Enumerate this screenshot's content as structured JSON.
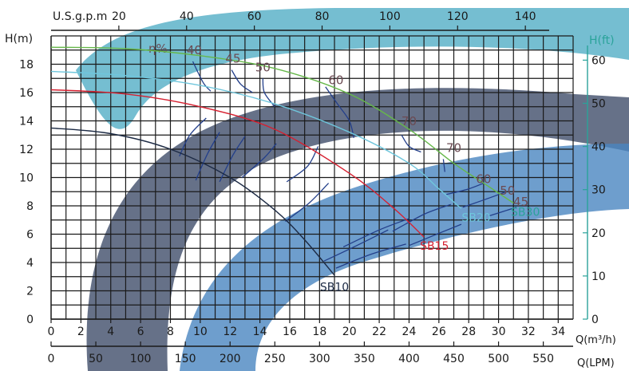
{
  "chart_data": {
    "type": "line",
    "title": "",
    "axes": {
      "bottom_primary": {
        "label": "Q(m³/h)",
        "range": [
          0,
          35
        ],
        "ticks": [
          0,
          2,
          4,
          6,
          8,
          10,
          12,
          14,
          16,
          18,
          20,
          22,
          24,
          26,
          28,
          30,
          32,
          34
        ]
      },
      "bottom_secondary": {
        "label": "Q(LPM)",
        "ticks": [
          0,
          50,
          100,
          150,
          200,
          250,
          300,
          350,
          400,
          450,
          500,
          550
        ]
      },
      "top": {
        "label": "U.S.g.p.m",
        "ticks": [
          20,
          40,
          60,
          80,
          100,
          120,
          140
        ]
      },
      "left": {
        "label": "H(m)",
        "range": [
          0,
          20
        ],
        "ticks": [
          0,
          2,
          4,
          6,
          8,
          10,
          12,
          14,
          16,
          18
        ]
      },
      "right": {
        "label": "H(ft)",
        "ticks": [
          0,
          10,
          20,
          30,
          40,
          50,
          60
        ]
      }
    },
    "grid": true,
    "efficiency_symbol": "η%",
    "series": [
      {
        "name": "SB10",
        "color": "#1c2a44",
        "x": [
          0,
          4,
          8,
          12,
          15,
          17,
          19
        ],
        "y": [
          13.5,
          13.1,
          12,
          10,
          7.7,
          5.6,
          3.1
        ]
      },
      {
        "name": "SB15",
        "color": "#d62030",
        "x": [
          0,
          5,
          10,
          15,
          20,
          23,
          25
        ],
        "y": [
          16.2,
          15.9,
          15,
          13.4,
          10.3,
          7.8,
          5.8
        ]
      },
      {
        "name": "SB20",
        "color": "#6fc6dc",
        "x": [
          0,
          5,
          10,
          15,
          20,
          24,
          26,
          27.5
        ],
        "y": [
          17.5,
          17.2,
          16.5,
          15.2,
          13.2,
          11,
          9.2,
          7.8
        ]
      },
      {
        "name": "SB30",
        "color": "#66b84a",
        "x": [
          0,
          5,
          10,
          15,
          20,
          24,
          27,
          29,
          31
        ],
        "y": [
          19.2,
          19.1,
          18.6,
          17.7,
          15.9,
          13.4,
          11,
          9.6,
          8.2
        ]
      }
    ],
    "efficiency_labels": [
      {
        "text": "40",
        "x": 9.6,
        "y": 18.7
      },
      {
        "text": "45",
        "x": 12.2,
        "y": 18.1
      },
      {
        "text": "50",
        "x": 14.2,
        "y": 17.5
      },
      {
        "text": "60",
        "x": 19.1,
        "y": 16.6
      },
      {
        "text": "70",
        "x": 24,
        "y": 13.7
      },
      {
        "text": "70",
        "x": 27,
        "y": 11.8
      },
      {
        "text": "60",
        "x": 29,
        "y": 9.6
      },
      {
        "text": "50",
        "x": 30.6,
        "y": 8.8
      },
      {
        "text": "45",
        "x": 31.5,
        "y": 8
      }
    ],
    "efficiency_contours": [
      [
        [
          9.5,
          18.2
        ],
        [
          10.2,
          16.7
        ],
        [
          10.7,
          16.1
        ]
      ],
      [
        [
          12.1,
          17.6
        ],
        [
          12.7,
          16.6
        ],
        [
          13.5,
          16.0
        ]
      ],
      [
        [
          14.2,
          17.0
        ],
        [
          14.3,
          16.0
        ],
        [
          15,
          15
        ]
      ],
      [
        [
          18.4,
          16.4
        ],
        [
          19.2,
          15.2
        ],
        [
          20,
          14
        ],
        [
          20.3,
          12.8
        ]
      ],
      [
        [
          23.5,
          13.0
        ],
        [
          24,
          12.2
        ],
        [
          24.8,
          11.8
        ]
      ],
      [
        [
          26.3,
          11.3
        ],
        [
          26.4,
          10.4
        ]
      ],
      [
        [
          26.5,
          8.8
        ],
        [
          28.0,
          9.2
        ],
        [
          29.0,
          9.6
        ]
      ],
      [
        [
          27.6,
          7.9
        ],
        [
          29.5,
          8.6
        ],
        [
          30.5,
          9
        ]
      ],
      [
        [
          29.4,
          7.3
        ],
        [
          31.2,
          7.9
        ]
      ],
      [
        [
          8.6,
          11.5
        ],
        [
          9.3,
          13.0
        ],
        [
          10.4,
          14.2
        ]
      ],
      [
        [
          9.7,
          9.8
        ],
        [
          10.5,
          11.7
        ],
        [
          11.3,
          13.2
        ]
      ],
      [
        [
          11.3,
          9.7
        ],
        [
          12.2,
          11.6
        ],
        [
          13.0,
          12.9
        ]
      ],
      [
        [
          12.8,
          10.0
        ],
        [
          14.3,
          11.4
        ],
        [
          15.1,
          12.4
        ]
      ],
      [
        [
          15.8,
          9.7
        ],
        [
          17.2,
          10.8
        ],
        [
          17.9,
          12.2
        ]
      ],
      [
        [
          15.7,
          6.9
        ],
        [
          17.3,
          8.2
        ],
        [
          18.6,
          9.6
        ]
      ],
      [
        [
          18.3,
          4.1
        ],
        [
          20.5,
          5.2
        ],
        [
          22.6,
          6.3
        ]
      ],
      [
        [
          19.1,
          3.6
        ],
        [
          21.5,
          4.6
        ],
        [
          23.8,
          5.3
        ]
      ],
      [
        [
          19.6,
          5.1
        ],
        [
          22.0,
          6.3
        ],
        [
          24.0,
          7.1
        ]
      ],
      [
        [
          22.9,
          6.2
        ],
        [
          25.0,
          7.4
        ],
        [
          26.8,
          8.1
        ]
      ],
      [
        [
          24.0,
          5.2
        ],
        [
          26.1,
          6.1
        ],
        [
          27.5,
          6.7
        ]
      ]
    ]
  }
}
